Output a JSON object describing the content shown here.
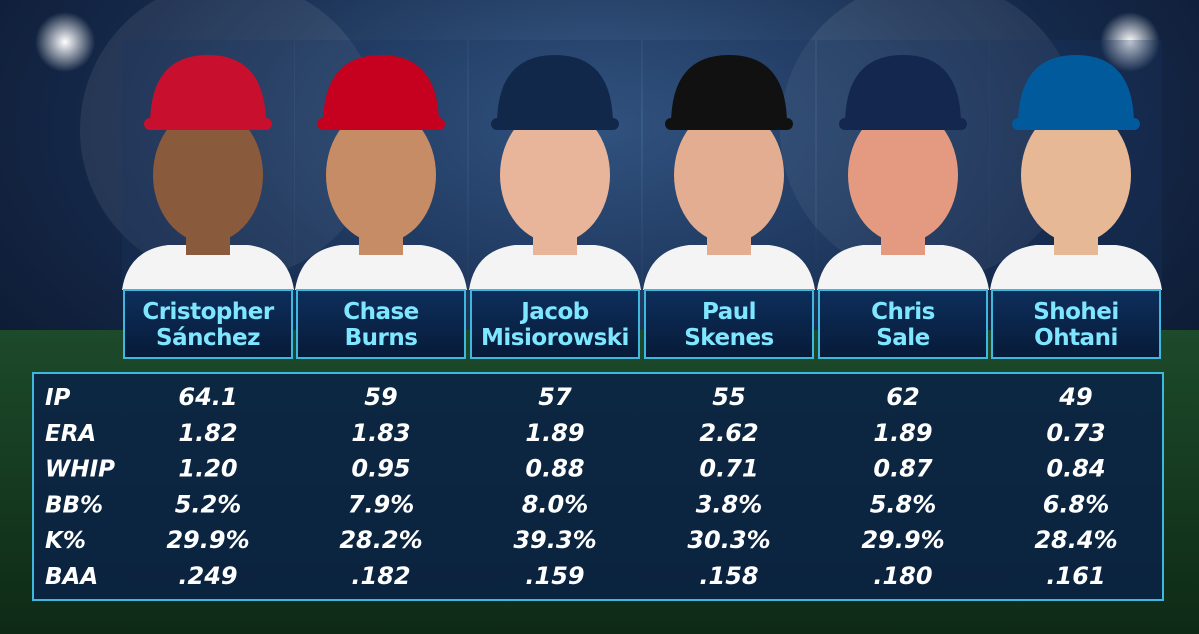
{
  "players": [
    {
      "first": "Cristopher",
      "last": "Sánchez"
    },
    {
      "first": "Chase",
      "last": "Burns"
    },
    {
      "first": "Jacob",
      "last": "Misiorowski"
    },
    {
      "first": "Paul",
      "last": "Skenes"
    },
    {
      "first": "Chris",
      "last": "Sale"
    },
    {
      "first": "Shohei",
      "last": "Ohtani"
    }
  ],
  "stats": {
    "rows": [
      {
        "label": "IP",
        "values": [
          "64.1",
          "59",
          "57",
          "55",
          "62",
          "49"
        ]
      },
      {
        "label": "ERA",
        "values": [
          "1.82",
          "1.83",
          "1.89",
          "2.62",
          "1.89",
          "0.73"
        ]
      },
      {
        "label": "WHIP",
        "values": [
          "1.20",
          "0.95",
          "0.88",
          "0.71",
          "0.87",
          "0.84"
        ]
      },
      {
        "label": "BB%",
        "values": [
          "5.2%",
          "7.9%",
          "8.0%",
          "3.8%",
          "5.8%",
          "6.8%"
        ]
      },
      {
        "label": "K%",
        "values": [
          "29.9%",
          "28.2%",
          "39.3%",
          "30.3%",
          "29.9%",
          "28.4%"
        ]
      },
      {
        "label": "BAA",
        "values": [
          ".249",
          ".182",
          ".159",
          ".158",
          ".180",
          ".161"
        ]
      }
    ]
  }
}
